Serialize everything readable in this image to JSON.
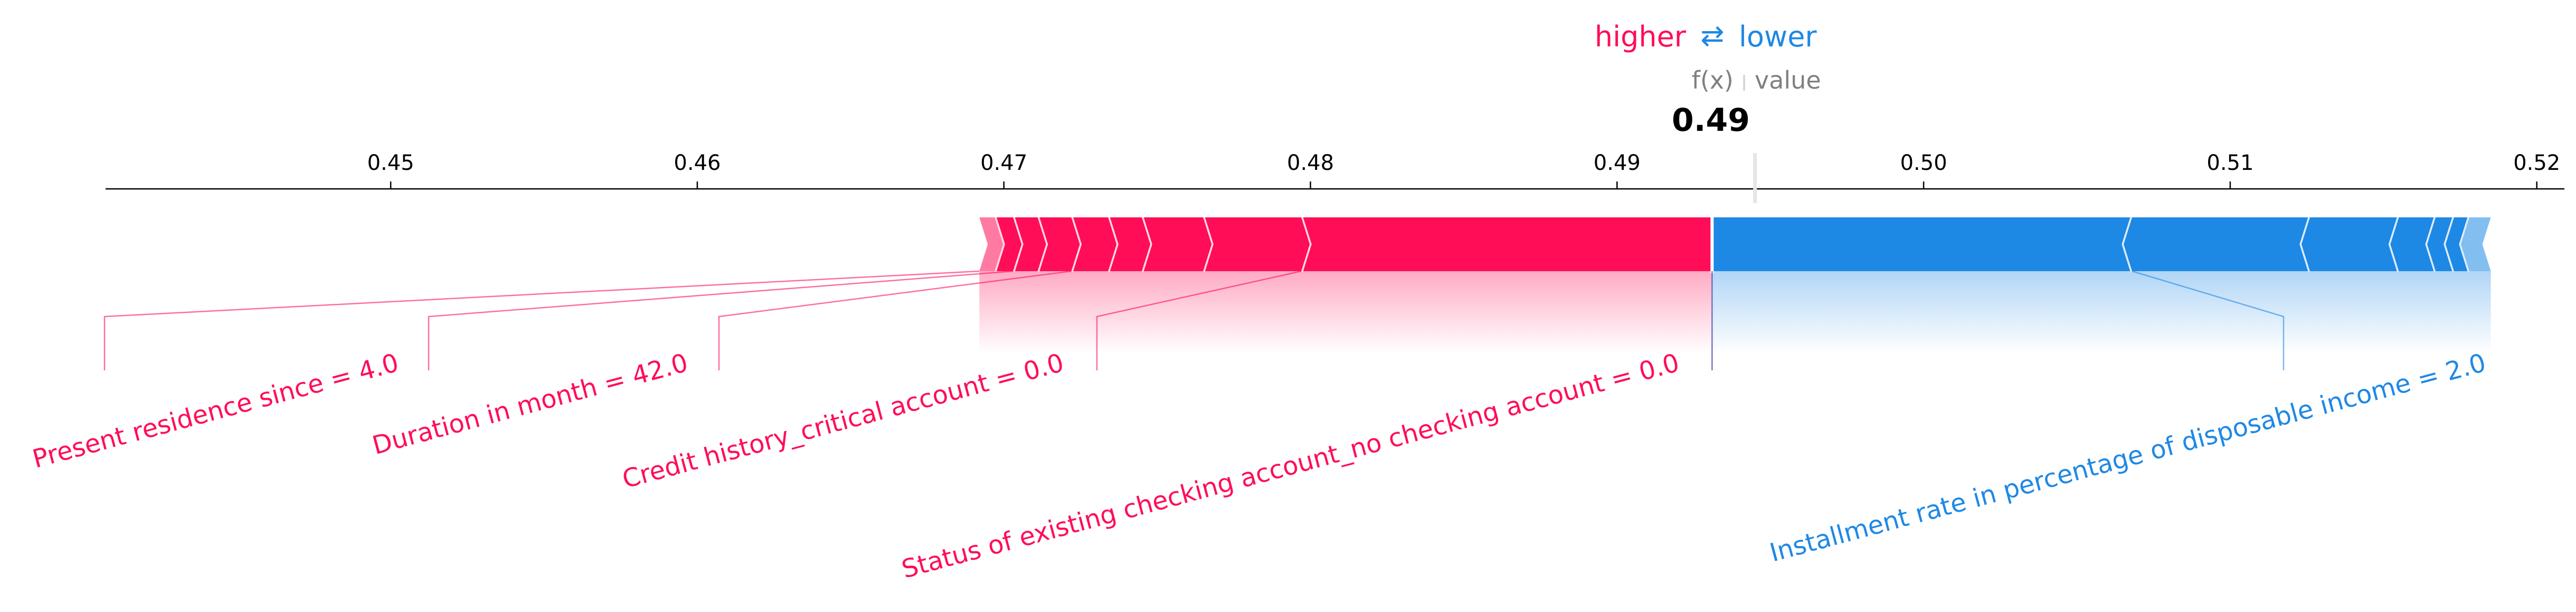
{
  "chart_data": {
    "type": "force",
    "legend": {
      "higher": "higher",
      "arrow": "⇄",
      "lower": "lower"
    },
    "header": {
      "fx_label": "f(x)",
      "base_label": "value"
    },
    "output_value": 0.4931,
    "output_label": "0.49",
    "base_value": 0.4945,
    "xlim": [
      0.4407,
      0.5209
    ],
    "ticks": [
      {
        "v": 0.45,
        "label": "0.45"
      },
      {
        "v": 0.46,
        "label": "0.46"
      },
      {
        "v": 0.47,
        "label": "0.47"
      },
      {
        "v": 0.48,
        "label": "0.48"
      },
      {
        "v": 0.49,
        "label": "0.49"
      },
      {
        "v": 0.5,
        "label": "0.50"
      },
      {
        "v": 0.51,
        "label": "0.51"
      },
      {
        "v": 0.52,
        "label": "0.52"
      }
    ],
    "positive_features": [
      {
        "label": "Status of existing checking account_no checking account = 0.0",
        "start": 0.4797,
        "end": 0.4931
      },
      {
        "label": "",
        "start": 0.4765,
        "end": 0.4797
      },
      {
        "label": "",
        "start": 0.4745,
        "end": 0.4765
      },
      {
        "label": "",
        "start": 0.4734,
        "end": 0.4745
      },
      {
        "label": "Credit history_critical account = 0.0",
        "start": 0.4722,
        "end": 0.4734
      },
      {
        "label": "",
        "start": 0.4711,
        "end": 0.4722
      },
      {
        "label": "Duration in month = 42.0",
        "start": 0.4703,
        "end": 0.4711
      },
      {
        "label": "",
        "start": 0.4697,
        "end": 0.4703
      },
      {
        "label": "Present residence since = 4.0",
        "start": 0.4692,
        "end": 0.4697
      }
    ],
    "negative_features": [
      {
        "label": "Installment rate in percentage of disposable income = 2.0",
        "start": 0.4931,
        "end": 0.5068
      },
      {
        "label": "",
        "start": 0.5068,
        "end": 0.5126
      },
      {
        "label": "",
        "start": 0.5126,
        "end": 0.5155
      },
      {
        "label": "",
        "start": 0.5155,
        "end": 0.5167
      },
      {
        "label": "",
        "start": 0.5167,
        "end": 0.5173
      },
      {
        "label": "",
        "start": 0.5173,
        "end": 0.5178
      },
      {
        "label": "",
        "start": 0.5178,
        "end": 0.5185
      }
    ],
    "colors": {
      "positive": "#ff0d57",
      "negative": "#1e88e5",
      "axis": "#000000",
      "muted": "#808080"
    }
  }
}
